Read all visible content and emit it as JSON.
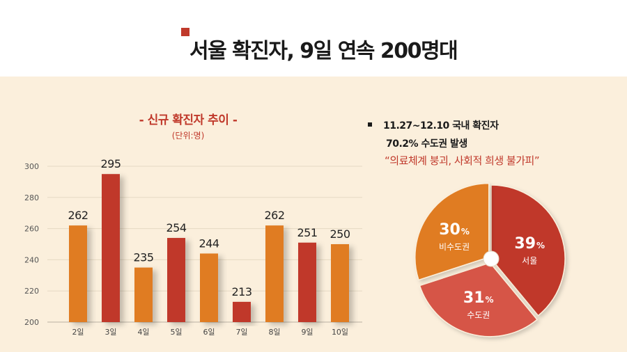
{
  "header": {
    "title": "서울 확진자, 9일 연속 200명대",
    "accent_color": "#c0392b"
  },
  "info": {
    "line1": "11.27~12.10 국내 확진자",
    "line2": "70.2% 수도권 발생",
    "quote": "“의료체계 붕괴, 사회적 희생 불가피”"
  },
  "chart_data": [
    {
      "type": "bar",
      "title": "- 신규 확진자 추이 -",
      "subtitle": "(단위:명)",
      "categories": [
        "2일",
        "3일",
        "4일",
        "5일",
        "6일",
        "7일",
        "8일",
        "9일",
        "10일"
      ],
      "values": [
        262,
        295,
        235,
        254,
        244,
        213,
        262,
        251,
        250
      ],
      "highlight": [
        false,
        true,
        false,
        true,
        false,
        true,
        false,
        true,
        false
      ],
      "ylim": [
        200,
        300
      ],
      "yticks": [
        200,
        220,
        240,
        260,
        280,
        300
      ],
      "grid": true,
      "colors": {
        "default": "#e07b22",
        "highlight": "#c0392b"
      }
    },
    {
      "type": "pie",
      "slices": [
        {
          "label": "서울",
          "value": 39,
          "display": "39",
          "unit": "%",
          "color": "#c0392b"
        },
        {
          "label": "수도권",
          "value": 31,
          "display": "31",
          "unit": "%",
          "color": "#d65446"
        },
        {
          "label": "비수도권",
          "value": 30,
          "display": "30",
          "unit": "%",
          "color": "#e07b22"
        }
      ]
    }
  ]
}
